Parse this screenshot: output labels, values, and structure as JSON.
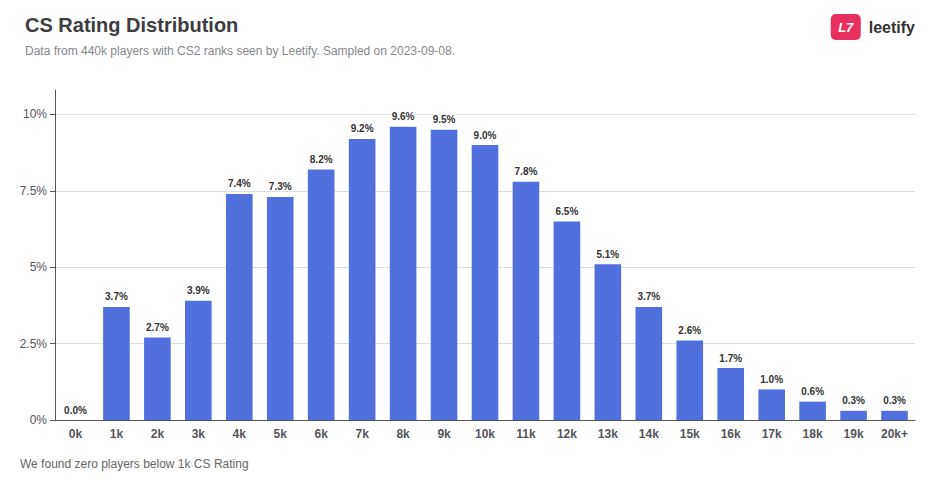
{
  "chart_data": {
    "type": "bar",
    "title": "CS Rating Distribution",
    "subtitle": "Data from 440k players with CS2 ranks seen by Leetify. Sampled on 2023-09-08.",
    "annotations": [
      "We found zero players below 1k CS Rating",
      "L7",
      "leetify"
    ],
    "categories": [
      "0k",
      "1k",
      "2k",
      "3k",
      "4k",
      "5k",
      "6k",
      "7k",
      "8k",
      "9k",
      "10k",
      "11k",
      "12k",
      "13k",
      "14k",
      "15k",
      "16k",
      "17k",
      "18k",
      "19k",
      "20k+"
    ],
    "values": [
      0.0,
      3.7,
      2.7,
      3.9,
      7.4,
      7.3,
      8.2,
      9.2,
      9.6,
      9.5,
      9.0,
      7.8,
      6.5,
      5.1,
      3.7,
      2.6,
      1.7,
      1.0,
      0.6,
      0.3,
      0.3
    ],
    "value_labels": [
      "0.0%",
      "3.7%",
      "2.7%",
      "3.9%",
      "7.4%",
      "7.3%",
      "8.2%",
      "9.2%",
      "9.6%",
      "9.5%",
      "9.0%",
      "7.8%",
      "6.5%",
      "5.1%",
      "3.7%",
      "2.6%",
      "1.7%",
      "1.0%",
      "0.6%",
      "0.3%",
      "0.3%"
    ],
    "data_labels": true,
    "ylim": [
      0,
      10.8
    ],
    "yticks": [
      {
        "value": 0,
        "label": "0%"
      },
      {
        "value": 2.5,
        "label": "2.5%"
      },
      {
        "value": 5.0,
        "label": "5%"
      },
      {
        "value": 7.5,
        "label": "7.5%"
      },
      {
        "value": 10.0,
        "label": "10%"
      }
    ],
    "grid": true
  }
}
